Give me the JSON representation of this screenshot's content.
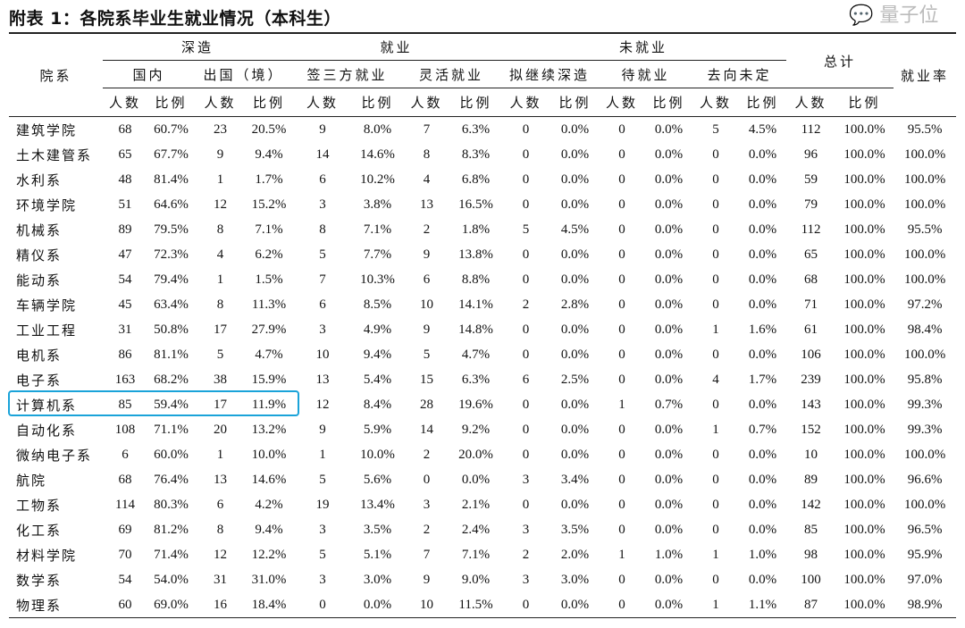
{
  "title": "附表 1：各院系毕业生就业情况（本科生）",
  "headers": {
    "dept": "院系",
    "further_study": "深造",
    "employed": "就业",
    "unemployed": "未就业",
    "total": "总计",
    "employment_rate": "就业率",
    "domestic": "国内",
    "abroad": "出国（境）",
    "signed": "签三方就业",
    "flexible": "灵活就业",
    "plan_study": "拟继续深造",
    "waiting": "待就业",
    "undecided": "去向未定",
    "count": "人数",
    "ratio": "比例"
  },
  "rows": [
    [
      "建筑学院",
      "68",
      "60.7%",
      "23",
      "20.5%",
      "9",
      "8.0%",
      "7",
      "6.3%",
      "0",
      "0.0%",
      "0",
      "0.0%",
      "5",
      "4.5%",
      "112",
      "100.0%",
      "95.5%"
    ],
    [
      "土木建管系",
      "65",
      "67.7%",
      "9",
      "9.4%",
      "14",
      "14.6%",
      "8",
      "8.3%",
      "0",
      "0.0%",
      "0",
      "0.0%",
      "0",
      "0.0%",
      "96",
      "100.0%",
      "100.0%"
    ],
    [
      "水利系",
      "48",
      "81.4%",
      "1",
      "1.7%",
      "6",
      "10.2%",
      "4",
      "6.8%",
      "0",
      "0.0%",
      "0",
      "0.0%",
      "0",
      "0.0%",
      "59",
      "100.0%",
      "100.0%"
    ],
    [
      "环境学院",
      "51",
      "64.6%",
      "12",
      "15.2%",
      "3",
      "3.8%",
      "13",
      "16.5%",
      "0",
      "0.0%",
      "0",
      "0.0%",
      "0",
      "0.0%",
      "79",
      "100.0%",
      "100.0%"
    ],
    [
      "机械系",
      "89",
      "79.5%",
      "8",
      "7.1%",
      "8",
      "7.1%",
      "2",
      "1.8%",
      "5",
      "4.5%",
      "0",
      "0.0%",
      "0",
      "0.0%",
      "112",
      "100.0%",
      "95.5%"
    ],
    [
      "精仪系",
      "47",
      "72.3%",
      "4",
      "6.2%",
      "5",
      "7.7%",
      "9",
      "13.8%",
      "0",
      "0.0%",
      "0",
      "0.0%",
      "0",
      "0.0%",
      "65",
      "100.0%",
      "100.0%"
    ],
    [
      "能动系",
      "54",
      "79.4%",
      "1",
      "1.5%",
      "7",
      "10.3%",
      "6",
      "8.8%",
      "0",
      "0.0%",
      "0",
      "0.0%",
      "0",
      "0.0%",
      "68",
      "100.0%",
      "100.0%"
    ],
    [
      "车辆学院",
      "45",
      "63.4%",
      "8",
      "11.3%",
      "6",
      "8.5%",
      "10",
      "14.1%",
      "2",
      "2.8%",
      "0",
      "0.0%",
      "0",
      "0.0%",
      "71",
      "100.0%",
      "97.2%"
    ],
    [
      "工业工程",
      "31",
      "50.8%",
      "17",
      "27.9%",
      "3",
      "4.9%",
      "9",
      "14.8%",
      "0",
      "0.0%",
      "0",
      "0.0%",
      "1",
      "1.6%",
      "61",
      "100.0%",
      "98.4%"
    ],
    [
      "电机系",
      "86",
      "81.1%",
      "5",
      "4.7%",
      "10",
      "9.4%",
      "5",
      "4.7%",
      "0",
      "0.0%",
      "0",
      "0.0%",
      "0",
      "0.0%",
      "106",
      "100.0%",
      "100.0%"
    ],
    [
      "电子系",
      "163",
      "68.2%",
      "38",
      "15.9%",
      "13",
      "5.4%",
      "15",
      "6.3%",
      "6",
      "2.5%",
      "0",
      "0.0%",
      "4",
      "1.7%",
      "239",
      "100.0%",
      "95.8%"
    ],
    [
      "计算机系",
      "85",
      "59.4%",
      "17",
      "11.9%",
      "12",
      "8.4%",
      "28",
      "19.6%",
      "0",
      "0.0%",
      "1",
      "0.7%",
      "0",
      "0.0%",
      "143",
      "100.0%",
      "99.3%"
    ],
    [
      "自动化系",
      "108",
      "71.1%",
      "20",
      "13.2%",
      "9",
      "5.9%",
      "14",
      "9.2%",
      "0",
      "0.0%",
      "0",
      "0.0%",
      "1",
      "0.7%",
      "152",
      "100.0%",
      "99.3%"
    ],
    [
      "微纳电子系",
      "6",
      "60.0%",
      "1",
      "10.0%",
      "1",
      "10.0%",
      "2",
      "20.0%",
      "0",
      "0.0%",
      "0",
      "0.0%",
      "0",
      "0.0%",
      "10",
      "100.0%",
      "100.0%"
    ],
    [
      "航院",
      "68",
      "76.4%",
      "13",
      "14.6%",
      "5",
      "5.6%",
      "0",
      "0.0%",
      "3",
      "3.4%",
      "0",
      "0.0%",
      "0",
      "0.0%",
      "89",
      "100.0%",
      "96.6%"
    ],
    [
      "工物系",
      "114",
      "80.3%",
      "6",
      "4.2%",
      "19",
      "13.4%",
      "3",
      "2.1%",
      "0",
      "0.0%",
      "0",
      "0.0%",
      "0",
      "0.0%",
      "142",
      "100.0%",
      "100.0%"
    ],
    [
      "化工系",
      "69",
      "81.2%",
      "8",
      "9.4%",
      "3",
      "3.5%",
      "2",
      "2.4%",
      "3",
      "3.5%",
      "0",
      "0.0%",
      "0",
      "0.0%",
      "85",
      "100.0%",
      "96.5%"
    ],
    [
      "材料学院",
      "70",
      "71.4%",
      "12",
      "12.2%",
      "5",
      "5.1%",
      "7",
      "7.1%",
      "2",
      "2.0%",
      "1",
      "1.0%",
      "1",
      "1.0%",
      "98",
      "100.0%",
      "95.9%"
    ],
    [
      "数学系",
      "54",
      "54.0%",
      "31",
      "31.0%",
      "3",
      "3.0%",
      "9",
      "9.0%",
      "3",
      "3.0%",
      "0",
      "0.0%",
      "0",
      "0.0%",
      "100",
      "100.0%",
      "97.0%"
    ],
    [
      "物理系",
      "60",
      "69.0%",
      "16",
      "18.4%",
      "0",
      "0.0%",
      "10",
      "11.5%",
      "0",
      "0.0%",
      "0",
      "0.0%",
      "1",
      "1.1%",
      "87",
      "100.0%",
      "98.9%"
    ]
  ],
  "highlight_color": "#1aa3d9",
  "watermark": "量子位"
}
